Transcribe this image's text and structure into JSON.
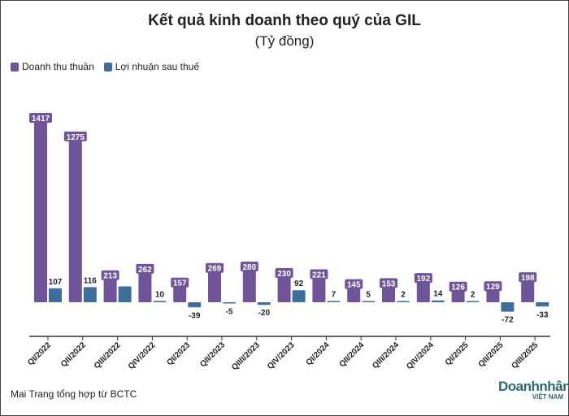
{
  "chart_data": {
    "type": "bar",
    "title": "Kết quả kinh doanh theo quý của GIL",
    "subtitle": "(Tỷ đồng)",
    "categories": [
      "QI/2022",
      "QII/2022",
      "QIII/2022",
      "QIV/2022",
      "QI/2023",
      "QII/2023",
      "QIIII/2023",
      "QIV/2023",
      "QI/2024",
      "QII/2024",
      "QIII/2024",
      "QIV/2024",
      "QI/2025",
      "QII/2025",
      "QIII/2025"
    ],
    "series": [
      {
        "name": "Doanh thu thuần",
        "color": "#6f5499",
        "values": [
          1417,
          1275,
          213,
          262,
          157,
          269,
          280,
          230,
          221,
          145,
          153,
          192,
          126,
          129,
          198
        ]
      },
      {
        "name": "Lợi nhuận sau thuế",
        "color": "#3e6f9a",
        "values": [
          107,
          116,
          121,
          10,
          -39,
          -5,
          -20,
          92,
          7,
          5,
          2,
          14,
          2,
          -72,
          -33
        ]
      }
    ],
    "data_labels": [
      [
        "1417",
        "1275",
        "213",
        "262",
        "157",
        "269",
        "280",
        "230",
        "221",
        "145",
        "153",
        "192",
        "126",
        "129",
        "198"
      ],
      [
        "107",
        "116",
        "",
        "10",
        "-39",
        "-5",
        "-20",
        "92",
        "7",
        "5",
        "2",
        "14",
        "2",
        "-72",
        "-33"
      ]
    ],
    "legend": "top-left",
    "grid": false
  },
  "source": "Mai Trang tổng hợp từ BCTC",
  "logo": {
    "line1": "Doanhnhân",
    "line2": "TẠP CHÍ ĐIỆN TỬ VIỆT NAM"
  }
}
